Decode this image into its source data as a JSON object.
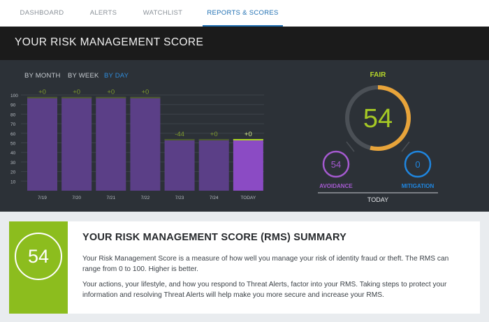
{
  "nav": {
    "tabs": [
      {
        "label": "DASHBOARD"
      },
      {
        "label": "ALERTS"
      },
      {
        "label": "WATCHLIST"
      },
      {
        "label": "REPORTS & SCORES"
      }
    ]
  },
  "header": {
    "title": "YOUR RISK MANAGEMENT SCORE"
  },
  "periods": [
    {
      "label": "BY MONTH"
    },
    {
      "label": "BY WEEK"
    },
    {
      "label": "BY DAY"
    }
  ],
  "chart_data": {
    "type": "bar",
    "categories": [
      "7/19",
      "7/20",
      "7/21",
      "7/22",
      "7/23",
      "7/24",
      "TODAY"
    ],
    "values": [
      98,
      98,
      98,
      98,
      54,
      54,
      54
    ],
    "change_labels": [
      "+0",
      "+0",
      "+0",
      "+0",
      "-44",
      "+0",
      "+0"
    ],
    "ylim": [
      0,
      100
    ],
    "yticks": [
      10,
      20,
      30,
      40,
      50,
      60,
      70,
      80,
      90,
      100
    ],
    "grid": true,
    "colors": {
      "bar": "#5b3f87",
      "bar_today": "#8b4bc4",
      "bar_top": "#4c5d2a",
      "label": "#7f9a2e",
      "label_today": "#d7f08a"
    }
  },
  "gauge": {
    "rating": "FAIR",
    "score": "54",
    "score_fraction": 0.54,
    "avoidance": {
      "value": "54",
      "label": "AVOIDANCE"
    },
    "mitigation": {
      "value": "0",
      "label": "MITIGATION"
    },
    "footer": "TODAY",
    "colors": {
      "rating": "#b6d62a",
      "score": "#a5c825",
      "arc": "#e8a43a",
      "track": "#4b5056",
      "avoidance": "#a55ad0",
      "mitigation": "#1f86e0"
    }
  },
  "summary": {
    "score": "54",
    "title": "YOUR RISK MANAGEMENT SCORE (RMS) SUMMARY",
    "p1": "Your Risk Management Score is a measure of how well you manage your risk of identity fraud or theft. The RMS can range from 0 to 100. Higher is better.",
    "p2": "Your actions, your lifestyle, and how you respond to Threat Alerts, factor into your RMS. Taking steps to protect your information and resolving Threat Alerts will help make you more secure and increase your RMS."
  }
}
